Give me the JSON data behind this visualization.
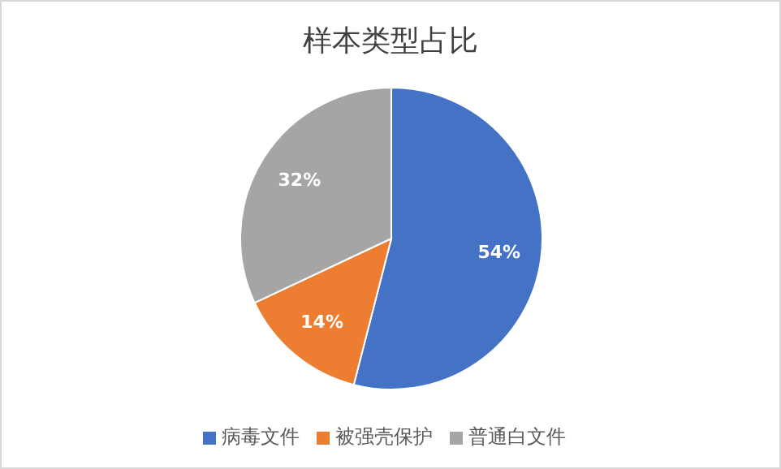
{
  "chart_data": {
    "type": "pie",
    "title": "样本类型占比",
    "categories": [
      "病毒文件",
      "被强壳保护",
      "普通白文件"
    ],
    "values": [
      54,
      14,
      32
    ],
    "colors": [
      "#4472c4",
      "#ed7d31",
      "#a5a5a5"
    ],
    "value_labels": [
      "54%",
      "14%",
      "32%"
    ],
    "legend": "bottom"
  }
}
